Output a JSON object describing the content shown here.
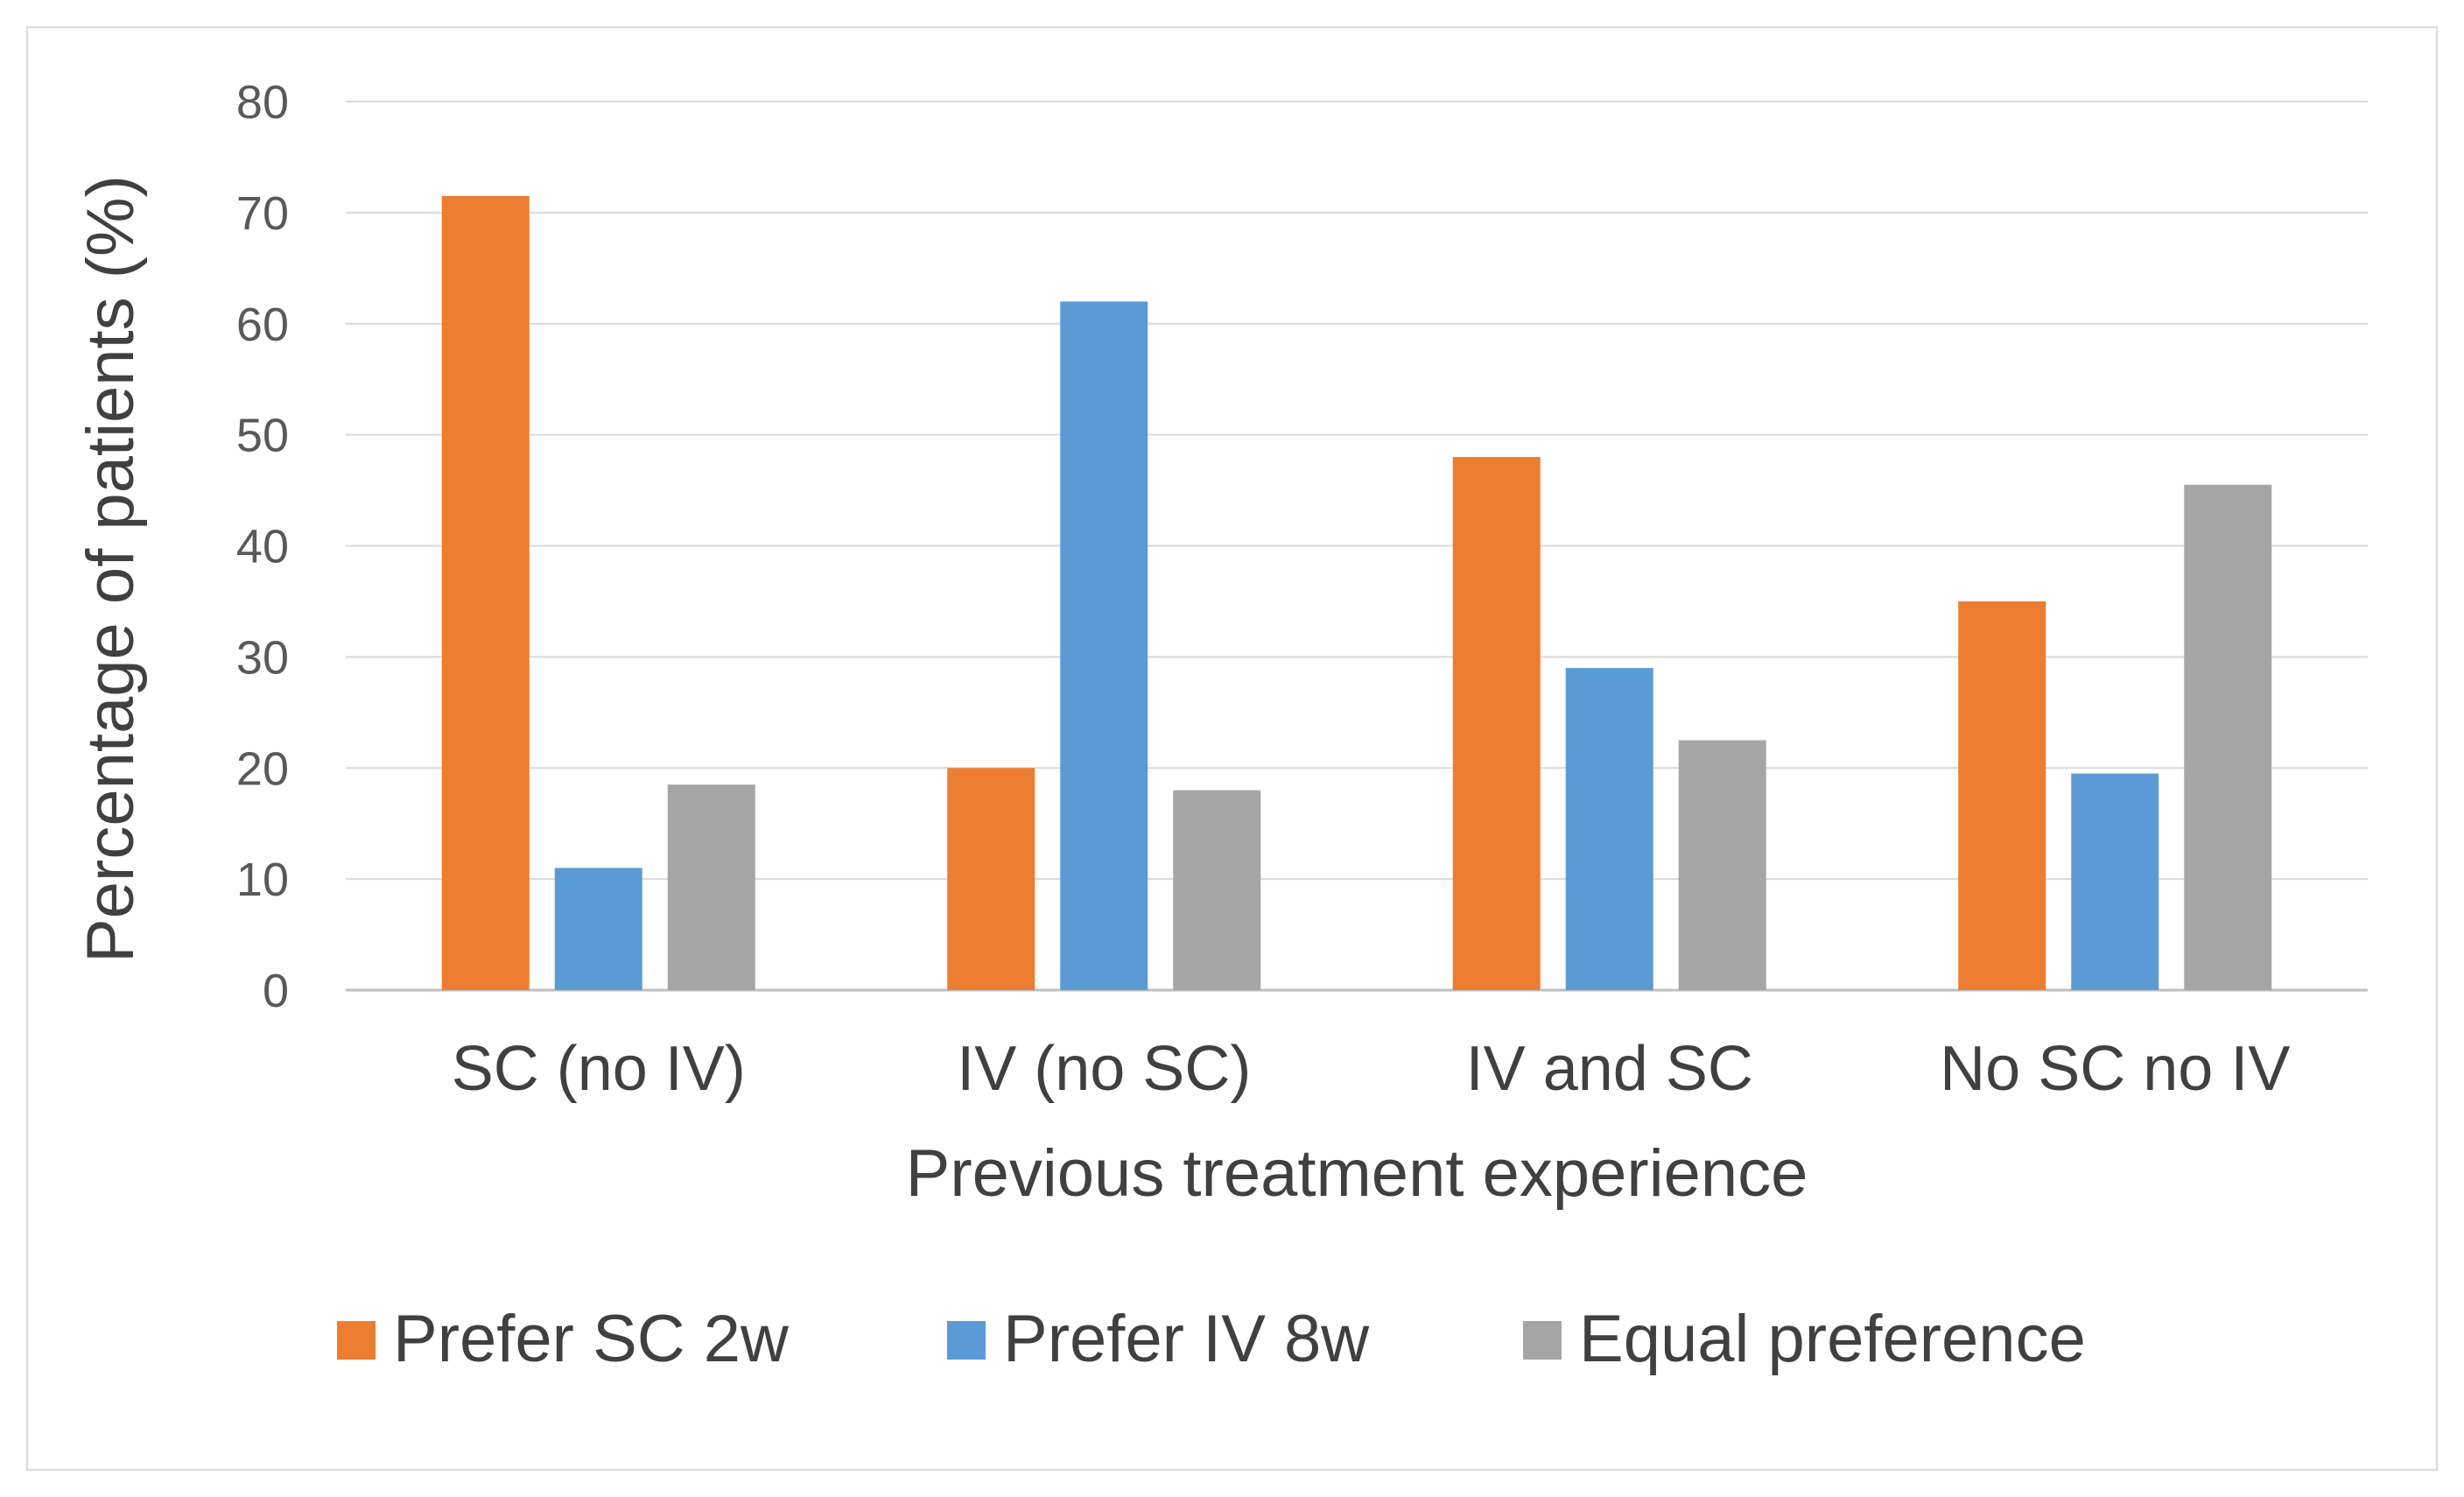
{
  "chart_data": {
    "type": "bar",
    "title": "",
    "xlabel": "Previous treatment experience",
    "ylabel": "Percentage of patients (%)",
    "ylim": [
      0,
      80
    ],
    "yticks": [
      0,
      10,
      20,
      30,
      40,
      50,
      60,
      70,
      80
    ],
    "grid": true,
    "legend_position": "bottom",
    "categories": [
      "SC (no IV)",
      "IV (no SC)",
      "IV and SC",
      "No SC no IV"
    ],
    "series": [
      {
        "name": "Prefer SC 2w",
        "color": "#ed7d31",
        "values": [
          71.5,
          20.0,
          48.0,
          35.0
        ]
      },
      {
        "name": "Prefer IV 8w",
        "color": "#5b9bd5",
        "values": [
          11.0,
          62.0,
          29.0,
          19.5
        ]
      },
      {
        "name": "Equal preference",
        "color": "#a5a5a5",
        "values": [
          18.5,
          18.0,
          22.5,
          45.5
        ]
      }
    ]
  }
}
